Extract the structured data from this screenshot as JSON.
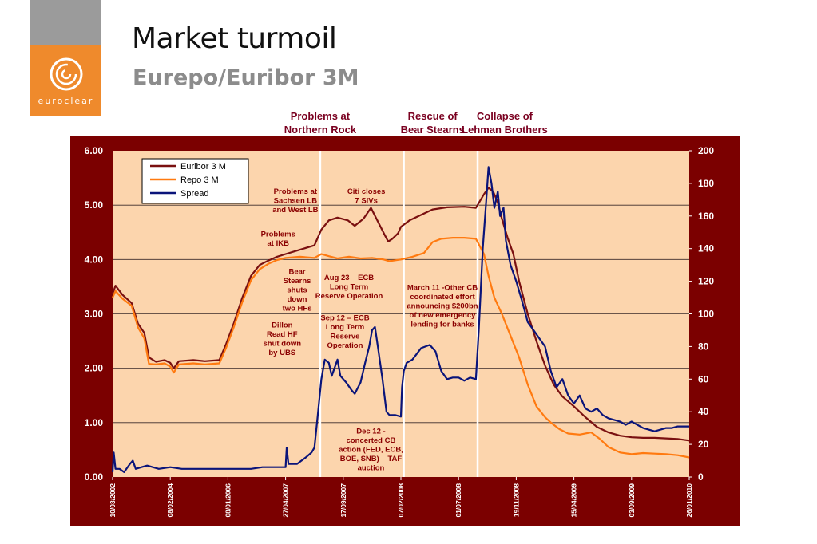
{
  "slide": {
    "title": "Market turmoil",
    "subtitle": "Eurepo/Euribor 3M",
    "logo_text": "euroclear"
  },
  "colors": {
    "frame": "#7b0000",
    "plot_bg": "#fcd5ad",
    "euribor": "#7a1010",
    "repo": "#ff7a10",
    "spread": "#0a147a",
    "annotation": "#8b0000",
    "logo_orange": "#ef8a2c",
    "logo_grey": "#9b9b9b"
  },
  "chart_data": {
    "type": "line",
    "x_ticks": [
      "10/03/2002",
      "08/02/2004",
      "08/01/2006",
      "27/04/2007",
      "17/09/2007",
      "07/02/2008",
      "01/07/2008",
      "19/11/2008",
      "15/04/2009",
      "03/09/2009",
      "26/01/2010"
    ],
    "y_left": {
      "ticks": [
        "6.00",
        "5.00",
        "4.00",
        "3.00",
        "2.00",
        "1.00",
        "0.00"
      ],
      "range": [
        0,
        6
      ]
    },
    "y_right": {
      "ticks": [
        "200",
        "180",
        "160",
        "140",
        "120",
        "100",
        "80",
        "60",
        "40",
        "20",
        "0"
      ],
      "range": [
        0,
        200
      ]
    },
    "grid": true,
    "legend": {
      "position": "top-left",
      "entries": [
        "Euribor 3 M",
        "Repo 3 M",
        "Spread"
      ]
    },
    "series": [
      {
        "name": "Euribor 3 M",
        "axis": "left",
        "points": [
          [
            0,
            3.37
          ],
          [
            0.05,
            3.52
          ],
          [
            0.17,
            3.35
          ],
          [
            0.33,
            3.2
          ],
          [
            0.44,
            2.82
          ],
          [
            0.55,
            2.65
          ],
          [
            0.63,
            2.2
          ],
          [
            0.75,
            2.12
          ],
          [
            0.9,
            2.15
          ],
          [
            1.0,
            2.1
          ],
          [
            1.06,
            2.0
          ],
          [
            1.15,
            2.13
          ],
          [
            1.4,
            2.15
          ],
          [
            1.6,
            2.13
          ],
          [
            1.85,
            2.15
          ],
          [
            1.97,
            2.45
          ],
          [
            2.1,
            2.82
          ],
          [
            2.25,
            3.3
          ],
          [
            2.4,
            3.7
          ],
          [
            2.55,
            3.9
          ],
          [
            2.7,
            3.98
          ],
          [
            2.85,
            4.05
          ],
          [
            3.0,
            4.1
          ],
          [
            3.25,
            4.18
          ],
          [
            3.5,
            4.26
          ],
          [
            3.62,
            4.55
          ],
          [
            3.75,
            4.72
          ],
          [
            3.9,
            4.77
          ],
          [
            4.08,
            4.72
          ],
          [
            4.2,
            4.62
          ],
          [
            4.35,
            4.75
          ],
          [
            4.48,
            4.95
          ],
          [
            4.6,
            4.7
          ],
          [
            4.72,
            4.45
          ],
          [
            4.78,
            4.33
          ],
          [
            4.85,
            4.38
          ],
          [
            4.95,
            4.48
          ],
          [
            5.0,
            4.6
          ],
          [
            5.15,
            4.72
          ],
          [
            5.35,
            4.82
          ],
          [
            5.55,
            4.92
          ],
          [
            5.8,
            4.96
          ],
          [
            6.1,
            4.97
          ],
          [
            6.3,
            4.95
          ],
          [
            6.44,
            5.2
          ],
          [
            6.52,
            5.32
          ],
          [
            6.6,
            5.25
          ],
          [
            6.68,
            5.05
          ],
          [
            6.75,
            4.75
          ],
          [
            6.85,
            4.4
          ],
          [
            6.95,
            4.1
          ],
          [
            7.05,
            3.6
          ],
          [
            7.2,
            3.0
          ],
          [
            7.35,
            2.5
          ],
          [
            7.5,
            2.05
          ],
          [
            7.65,
            1.7
          ],
          [
            7.8,
            1.48
          ],
          [
            8.0,
            1.3
          ],
          [
            8.2,
            1.1
          ],
          [
            8.4,
            0.92
          ],
          [
            8.6,
            0.82
          ],
          [
            8.8,
            0.76
          ],
          [
            9.0,
            0.73
          ],
          [
            9.2,
            0.72
          ],
          [
            9.4,
            0.72
          ],
          [
            9.6,
            0.71
          ],
          [
            9.8,
            0.7
          ],
          [
            10.0,
            0.67
          ]
        ]
      },
      {
        "name": "Repo 3 M",
        "axis": "left",
        "points": [
          [
            0,
            3.3
          ],
          [
            0.05,
            3.42
          ],
          [
            0.17,
            3.28
          ],
          [
            0.33,
            3.15
          ],
          [
            0.44,
            2.75
          ],
          [
            0.55,
            2.55
          ],
          [
            0.63,
            2.08
          ],
          [
            0.75,
            2.07
          ],
          [
            0.9,
            2.09
          ],
          [
            1.0,
            2.03
          ],
          [
            1.06,
            1.92
          ],
          [
            1.15,
            2.07
          ],
          [
            1.4,
            2.09
          ],
          [
            1.6,
            2.07
          ],
          [
            1.85,
            2.09
          ],
          [
            1.97,
            2.38
          ],
          [
            2.1,
            2.75
          ],
          [
            2.25,
            3.22
          ],
          [
            2.4,
            3.62
          ],
          [
            2.55,
            3.82
          ],
          [
            2.7,
            3.92
          ],
          [
            2.85,
            3.99
          ],
          [
            3.0,
            4.03
          ],
          [
            3.25,
            4.05
          ],
          [
            3.5,
            4.03
          ],
          [
            3.62,
            4.1
          ],
          [
            3.75,
            4.06
          ],
          [
            3.9,
            4.02
          ],
          [
            4.1,
            4.05
          ],
          [
            4.3,
            4.02
          ],
          [
            4.5,
            4.03
          ],
          [
            4.7,
            4.0
          ],
          [
            4.8,
            3.97
          ],
          [
            5.0,
            4.0
          ],
          [
            5.2,
            4.05
          ],
          [
            5.4,
            4.12
          ],
          [
            5.55,
            4.32
          ],
          [
            5.7,
            4.38
          ],
          [
            5.9,
            4.4
          ],
          [
            6.1,
            4.4
          ],
          [
            6.3,
            4.38
          ],
          [
            6.44,
            4.1
          ],
          [
            6.52,
            3.7
          ],
          [
            6.62,
            3.3
          ],
          [
            6.75,
            3.0
          ],
          [
            6.9,
            2.6
          ],
          [
            7.05,
            2.2
          ],
          [
            7.2,
            1.7
          ],
          [
            7.35,
            1.3
          ],
          [
            7.5,
            1.1
          ],
          [
            7.6,
            1.0
          ],
          [
            7.75,
            0.88
          ],
          [
            7.9,
            0.8
          ],
          [
            8.1,
            0.78
          ],
          [
            8.3,
            0.82
          ],
          [
            8.45,
            0.7
          ],
          [
            8.6,
            0.55
          ],
          [
            8.8,
            0.45
          ],
          [
            9.0,
            0.42
          ],
          [
            9.2,
            0.44
          ],
          [
            9.4,
            0.43
          ],
          [
            9.6,
            0.42
          ],
          [
            9.8,
            0.4
          ],
          [
            10.0,
            0.36
          ]
        ]
      },
      {
        "name": "Spread",
        "axis": "right",
        "points": [
          [
            0,
            3
          ],
          [
            0.02,
            15
          ],
          [
            0.05,
            5
          ],
          [
            0.12,
            5
          ],
          [
            0.2,
            3
          ],
          [
            0.3,
            8
          ],
          [
            0.35,
            10
          ],
          [
            0.4,
            5
          ],
          [
            0.5,
            6
          ],
          [
            0.6,
            7
          ],
          [
            0.8,
            5
          ],
          [
            1.0,
            6
          ],
          [
            1.2,
            5
          ],
          [
            1.4,
            5
          ],
          [
            1.6,
            5
          ],
          [
            1.8,
            5
          ],
          [
            2.0,
            5
          ],
          [
            2.2,
            5
          ],
          [
            2.4,
            5
          ],
          [
            2.6,
            6
          ],
          [
            2.8,
            6
          ],
          [
            3.0,
            6
          ],
          [
            3.02,
            18
          ],
          [
            3.05,
            8
          ],
          [
            3.2,
            8
          ],
          [
            3.35,
            12
          ],
          [
            3.45,
            15
          ],
          [
            3.5,
            18
          ],
          [
            3.55,
            35
          ],
          [
            3.62,
            60
          ],
          [
            3.68,
            72
          ],
          [
            3.75,
            70
          ],
          [
            3.8,
            62
          ],
          [
            3.9,
            72
          ],
          [
            3.95,
            62
          ],
          [
            4.05,
            58
          ],
          [
            4.15,
            53
          ],
          [
            4.2,
            51
          ],
          [
            4.3,
            58
          ],
          [
            4.38,
            70
          ],
          [
            4.45,
            80
          ],
          [
            4.5,
            90
          ],
          [
            4.55,
            92
          ],
          [
            4.6,
            80
          ],
          [
            4.68,
            60
          ],
          [
            4.75,
            40
          ],
          [
            4.8,
            38
          ],
          [
            4.9,
            38
          ],
          [
            5.0,
            37
          ],
          [
            5.02,
            55
          ],
          [
            5.05,
            65
          ],
          [
            5.1,
            70
          ],
          [
            5.2,
            72
          ],
          [
            5.35,
            79
          ],
          [
            5.5,
            81
          ],
          [
            5.6,
            77
          ],
          [
            5.7,
            65
          ],
          [
            5.8,
            60
          ],
          [
            5.9,
            61
          ],
          [
            6.0,
            61
          ],
          [
            6.1,
            59
          ],
          [
            6.2,
            61
          ],
          [
            6.3,
            60
          ],
          [
            6.35,
            90
          ],
          [
            6.42,
            140
          ],
          [
            6.48,
            170
          ],
          [
            6.52,
            190
          ],
          [
            6.57,
            180
          ],
          [
            6.62,
            165
          ],
          [
            6.68,
            175
          ],
          [
            6.72,
            160
          ],
          [
            6.78,
            165
          ],
          [
            6.82,
            145
          ],
          [
            6.9,
            130
          ],
          [
            7.0,
            120
          ],
          [
            7.1,
            108
          ],
          [
            7.2,
            95
          ],
          [
            7.3,
            90
          ],
          [
            7.4,
            85
          ],
          [
            7.5,
            80
          ],
          [
            7.6,
            65
          ],
          [
            7.7,
            55
          ],
          [
            7.8,
            60
          ],
          [
            7.9,
            50
          ],
          [
            8.0,
            45
          ],
          [
            8.1,
            50
          ],
          [
            8.2,
            42
          ],
          [
            8.3,
            40
          ],
          [
            8.4,
            42
          ],
          [
            8.5,
            38
          ],
          [
            8.6,
            36
          ],
          [
            8.7,
            35
          ],
          [
            8.8,
            34
          ],
          [
            8.9,
            32
          ],
          [
            9.0,
            34
          ],
          [
            9.1,
            32
          ],
          [
            9.2,
            30
          ],
          [
            9.4,
            28
          ],
          [
            9.6,
            30
          ],
          [
            9.7,
            30
          ],
          [
            9.8,
            31
          ],
          [
            10.0,
            31
          ]
        ]
      }
    ],
    "vertical_markers": [
      3.6,
      5.05,
      6.33
    ],
    "headers": [
      {
        "lines": [
          "Problems at",
          "Northern Rock"
        ],
        "x": 3.6
      },
      {
        "lines": [
          "Rescue of",
          "Bear Stearns"
        ],
        "x": 5.55
      },
      {
        "lines": [
          "Collapse of",
          "Lehman Brothers"
        ],
        "x": 6.8
      }
    ],
    "annotations": [
      {
        "lines": [
          "Problems at",
          "Sachsen LB",
          "and West LB"
        ],
        "x": 3.17,
        "y": 5.21
      },
      {
        "lines": [
          "Citi closes",
          "7 SIVs"
        ],
        "x": 4.4,
        "y": 5.21
      },
      {
        "lines": [
          "Problems",
          "at IKB"
        ],
        "x": 2.87,
        "y": 4.42
      },
      {
        "lines": [
          "Bear",
          "Stearns",
          "shuts",
          "down",
          "two HFs"
        ],
        "x": 3.2,
        "y": 3.73
      },
      {
        "lines": [
          "Dillon",
          "Read HF",
          "shut down",
          "by UBS"
        ],
        "x": 2.94,
        "y": 2.75
      },
      {
        "lines": [
          "Aug 23 – ECB",
          "Long Term",
          "Reserve Operation"
        ],
        "x": 4.1,
        "y": 3.62
      },
      {
        "lines": [
          "Sep 12 – ECB",
          "Long Term",
          "Reserve",
          "Operation"
        ],
        "x": 4.03,
        "y": 2.88
      },
      {
        "lines": [
          "March 11 -Other CB",
          "coordinated effort",
          "announcing $200bn",
          "of new emergency",
          "lending for banks"
        ],
        "x": 5.72,
        "y": 3.44
      },
      {
        "lines": [
          "Dec 12 -",
          "concerted CB",
          "action (FED, ECB,",
          "BOE, SNB) – TAF",
          "auction"
        ],
        "x": 4.48,
        "y": 0.8
      }
    ]
  }
}
